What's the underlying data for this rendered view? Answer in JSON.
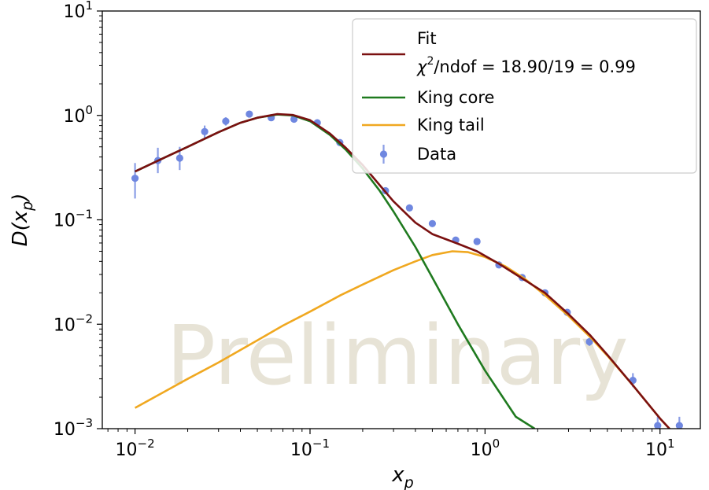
{
  "chart_data": {
    "type": "scatter",
    "xlabel": "x_p",
    "ylabel": "D(x_p)",
    "xscale": "log",
    "yscale": "log",
    "xlim": [
      0.0065,
      17
    ],
    "ylim": [
      0.001,
      10
    ],
    "x_ticks": [
      "10^-2",
      "10^-1",
      "10^0",
      "10^1"
    ],
    "y_ticks": [
      "10^-3",
      "10^-2",
      "10^-1",
      "10^0",
      "10^1"
    ],
    "grid": false,
    "legend_position": "top-right",
    "watermark": "Preliminary",
    "legend": [
      {
        "key": "fit",
        "label": "Fit",
        "sublabel_prefix": "χ",
        "sublabel_exp": "2",
        "sublabel_rest": "/ndof = 18.90/19 = 0.99"
      },
      {
        "key": "core",
        "label": "King core"
      },
      {
        "key": "tail",
        "label": "King tail"
      },
      {
        "key": "data",
        "label": "Data"
      }
    ],
    "colors": {
      "fit": "#7a1010",
      "core": "#1f7a1f",
      "tail": "#f0a820",
      "data": "#6f87e0"
    },
    "series": [
      {
        "name": "Data",
        "kind": "points",
        "x": [
          0.01,
          0.0135,
          0.018,
          0.025,
          0.033,
          0.045,
          0.06,
          0.081,
          0.11,
          0.148,
          0.27,
          0.37,
          0.5,
          0.68,
          0.9,
          1.2,
          1.63,
          2.2,
          2.95,
          3.95,
          7.0,
          9.7,
          12.9
        ],
        "y": [
          0.25,
          0.37,
          0.39,
          0.7,
          0.88,
          1.03,
          0.95,
          0.92,
          0.85,
          0.55,
          0.19,
          0.13,
          0.092,
          0.064,
          0.062,
          0.037,
          0.028,
          0.02,
          0.013,
          0.0068,
          0.0029,
          0.00107,
          0.00107
        ],
        "ylo": [
          0.16,
          0.28,
          0.3,
          0.6,
          0.8,
          0.97,
          0.91,
          0.88,
          0.82,
          0.53,
          0.185,
          0.125,
          0.088,
          0.06,
          0.058,
          0.035,
          0.026,
          0.019,
          0.0122,
          0.0062,
          0.0025,
          0.00088,
          0.00088
        ],
        "yhi": [
          0.35,
          0.49,
          0.5,
          0.8,
          0.96,
          1.09,
          0.99,
          0.96,
          0.88,
          0.57,
          0.195,
          0.135,
          0.096,
          0.068,
          0.066,
          0.039,
          0.03,
          0.021,
          0.0138,
          0.0074,
          0.0034,
          0.0013,
          0.0013
        ]
      },
      {
        "name": "King core",
        "kind": "line",
        "x": [
          0.01,
          0.015,
          0.02,
          0.03,
          0.04,
          0.05,
          0.065,
          0.08,
          0.1,
          0.13,
          0.16,
          0.2,
          0.25,
          0.3,
          0.4,
          0.5,
          0.7,
          1.0,
          1.5,
          1.92
        ],
        "y": [
          0.29,
          0.4,
          0.5,
          0.69,
          0.85,
          0.95,
          1.02,
          1.0,
          0.88,
          0.65,
          0.47,
          0.31,
          0.19,
          0.12,
          0.055,
          0.028,
          0.01,
          0.0036,
          0.0013,
          0.001
        ]
      },
      {
        "name": "King tail",
        "kind": "line",
        "x": [
          0.01,
          0.015,
          0.02,
          0.03,
          0.05,
          0.07,
          0.1,
          0.15,
          0.2,
          0.3,
          0.4,
          0.5,
          0.65,
          0.8,
          1.0,
          1.3,
          1.7,
          2.2,
          3.0,
          4.0,
          5.0,
          7.0,
          10.0,
          12.0
        ],
        "y": [
          0.00158,
          0.0023,
          0.003,
          0.0043,
          0.007,
          0.0097,
          0.0132,
          0.019,
          0.024,
          0.033,
          0.04,
          0.046,
          0.05,
          0.049,
          0.044,
          0.036,
          0.027,
          0.019,
          0.012,
          0.0075,
          0.005,
          0.0026,
          0.00125,
          0.0009
        ]
      },
      {
        "name": "Fit",
        "kind": "line",
        "x": [
          0.01,
          0.015,
          0.02,
          0.03,
          0.04,
          0.05,
          0.065,
          0.08,
          0.1,
          0.13,
          0.16,
          0.2,
          0.25,
          0.3,
          0.4,
          0.5,
          0.7,
          0.9,
          1.2,
          1.6,
          2.2,
          3.0,
          4.0,
          5.0,
          7.0,
          10.0,
          12.0
        ],
        "y": [
          0.29,
          0.4,
          0.5,
          0.69,
          0.85,
          0.95,
          1.03,
          1.01,
          0.9,
          0.67,
          0.49,
          0.335,
          0.215,
          0.15,
          0.094,
          0.073,
          0.059,
          0.05,
          0.038,
          0.028,
          0.02,
          0.0125,
          0.0078,
          0.0051,
          0.0026,
          0.00125,
          0.0009
        ]
      }
    ]
  }
}
